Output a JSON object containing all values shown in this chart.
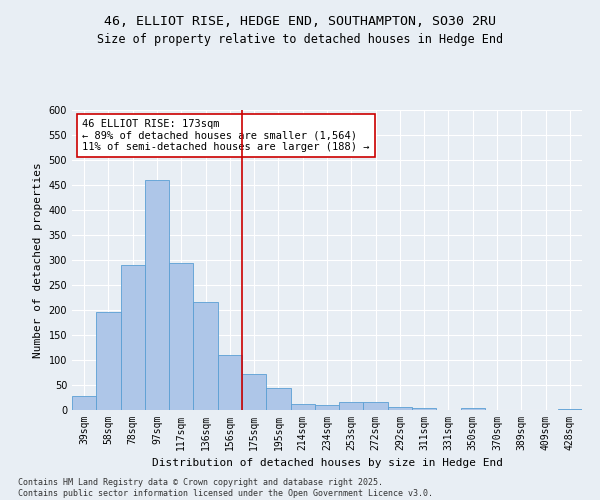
{
  "title": "46, ELLIOT RISE, HEDGE END, SOUTHAMPTON, SO30 2RU",
  "subtitle": "Size of property relative to detached houses in Hedge End",
  "xlabel": "Distribution of detached houses by size in Hedge End",
  "ylabel": "Number of detached properties",
  "categories": [
    "39sqm",
    "58sqm",
    "78sqm",
    "97sqm",
    "117sqm",
    "136sqm",
    "156sqm",
    "175sqm",
    "195sqm",
    "214sqm",
    "234sqm",
    "253sqm",
    "272sqm",
    "292sqm",
    "311sqm",
    "331sqm",
    "350sqm",
    "370sqm",
    "389sqm",
    "409sqm",
    "428sqm"
  ],
  "values": [
    28,
    197,
    290,
    460,
    295,
    217,
    110,
    73,
    45,
    12,
    10,
    17,
    17,
    7,
    5,
    0,
    4,
    0,
    0,
    0,
    2
  ],
  "bar_color": "#aec6e8",
  "bar_edge_color": "#5a9fd4",
  "vline_color": "#cc0000",
  "vline_x_index": 7,
  "annotation_line1": "46 ELLIOT RISE: 173sqm",
  "annotation_line2": "← 89% of detached houses are smaller (1,564)",
  "annotation_line3": "11% of semi-detached houses are larger (188) →",
  "annotation_box_color": "#ffffff",
  "annotation_box_edge_color": "#cc0000",
  "ylim": [
    0,
    600
  ],
  "yticks": [
    0,
    50,
    100,
    150,
    200,
    250,
    300,
    350,
    400,
    450,
    500,
    550,
    600
  ],
  "bg_color": "#e8eef4",
  "plot_bg_color": "#e8eef4",
  "footer_line1": "Contains HM Land Registry data © Crown copyright and database right 2025.",
  "footer_line2": "Contains public sector information licensed under the Open Government Licence v3.0.",
  "title_fontsize": 9.5,
  "subtitle_fontsize": 8.5,
  "xlabel_fontsize": 8,
  "ylabel_fontsize": 8,
  "tick_fontsize": 7,
  "annotation_fontsize": 7.5,
  "footer_fontsize": 6
}
